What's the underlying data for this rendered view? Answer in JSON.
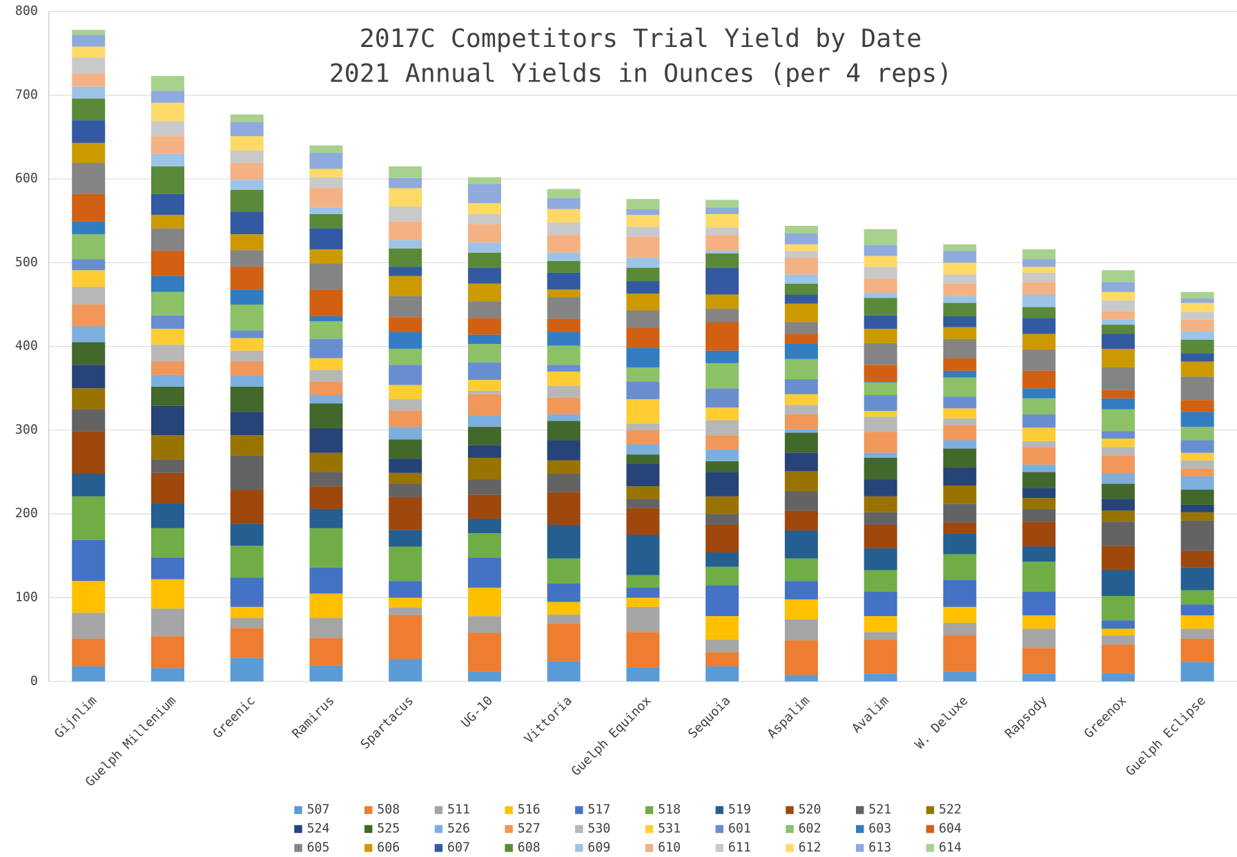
{
  "chart_data": {
    "type": "stacked_bar",
    "title": [
      "2017C Competitors Trial Yield by Date",
      "2021  Annual Yields in Ounces (per 4 reps)"
    ],
    "categories": [
      "Gijnlim",
      "Guelph Millenium",
      "Greenic",
      "Ramirus",
      "Spartacus",
      "UG-10",
      "Vittoria",
      "Guelph Equinox",
      "Sequoia",
      "Aspalim",
      "Avalim",
      "W. Deluxe",
      "Rapsody",
      "Greenox",
      "Guelph Eclipse"
    ],
    "ylim": [
      0,
      800
    ],
    "yticks": [
      0,
      100,
      200,
      300,
      400,
      500,
      600,
      700,
      800
    ],
    "grid": true,
    "legend": "bottom",
    "series": [
      {
        "name": "507",
        "color": "#5b9bd5",
        "values": [
          18,
          16,
          28,
          19,
          27,
          12,
          24,
          17,
          18,
          8,
          9,
          12,
          9,
          10,
          23
        ]
      },
      {
        "name": "508",
        "color": "#ed7d31",
        "values": [
          33,
          38,
          36,
          33,
          52,
          46,
          45,
          42,
          17,
          41,
          41,
          43,
          31,
          34,
          28
        ]
      },
      {
        "name": "511",
        "color": "#a5a5a5",
        "values": [
          31,
          33,
          12,
          24,
          9,
          20,
          11,
          30,
          15,
          25,
          9,
          15,
          23,
          11,
          12
        ]
      },
      {
        "name": "516",
        "color": "#ffc000",
        "values": [
          38,
          35,
          13,
          29,
          12,
          34,
          15,
          11,
          28,
          24,
          19,
          19,
          16,
          8,
          16
        ]
      },
      {
        "name": "517",
        "color": "#4472c4",
        "values": [
          49,
          26,
          35,
          31,
          20,
          36,
          22,
          12,
          37,
          22,
          29,
          32,
          28,
          10,
          13
        ]
      },
      {
        "name": "518",
        "color": "#70ad47",
        "values": [
          52,
          35,
          38,
          47,
          41,
          29,
          30,
          15,
          22,
          27,
          26,
          31,
          36,
          29,
          17
        ]
      },
      {
        "name": "519",
        "color": "#255e91",
        "values": [
          27,
          30,
          26,
          23,
          20,
          17,
          40,
          48,
          17,
          33,
          26,
          25,
          18,
          31,
          27
        ]
      },
      {
        "name": "520",
        "color": "#9e480e",
        "values": [
          51,
          36,
          41,
          27,
          39,
          29,
          39,
          32,
          33,
          24,
          28,
          13,
          30,
          29,
          20
        ]
      },
      {
        "name": "521",
        "color": "#636363",
        "values": [
          26,
          16,
          41,
          17,
          16,
          18,
          22,
          11,
          13,
          23,
          15,
          22,
          15,
          29,
          36
        ]
      },
      {
        "name": "522",
        "color": "#997300",
        "values": [
          25,
          29,
          24,
          23,
          13,
          26,
          16,
          15,
          21,
          24,
          19,
          22,
          13,
          13,
          10
        ]
      },
      {
        "name": "524",
        "color": "#264478",
        "values": [
          28,
          35,
          28,
          29,
          17,
          15,
          24,
          27,
          29,
          22,
          20,
          21,
          12,
          14,
          9
        ]
      },
      {
        "name": "525",
        "color": "#43682b",
        "values": [
          27,
          23,
          30,
          30,
          23,
          22,
          23,
          11,
          13,
          24,
          26,
          23,
          19,
          18,
          18
        ]
      },
      {
        "name": "526",
        "color": "#7cafdd",
        "values": [
          19,
          14,
          13,
          10,
          15,
          14,
          8,
          12,
          14,
          4,
          6,
          10,
          9,
          12,
          16
        ]
      },
      {
        "name": "527",
        "color": "#f1975a",
        "values": [
          26,
          16,
          17,
          16,
          19,
          25,
          20,
          17,
          17,
          18,
          25,
          18,
          21,
          22,
          9
        ]
      },
      {
        "name": "530",
        "color": "#b7b7b7",
        "values": [
          21,
          20,
          13,
          14,
          14,
          4,
          14,
          8,
          18,
          11,
          18,
          8,
          7,
          10,
          10
        ]
      },
      {
        "name": "531",
        "color": "#ffcd33",
        "values": [
          20,
          19,
          15,
          14,
          17,
          13,
          17,
          29,
          15,
          13,
          7,
          12,
          16,
          10,
          9
        ]
      },
      {
        "name": "601",
        "color": "#698ed0",
        "values": [
          13,
          16,
          9,
          23,
          24,
          21,
          8,
          21,
          23,
          18,
          19,
          14,
          16,
          9,
          15
        ]
      },
      {
        "name": "602",
        "color": "#8cc168",
        "values": [
          30,
          28,
          31,
          21,
          19,
          22,
          23,
          17,
          30,
          24,
          15,
          23,
          19,
          26,
          16
        ]
      },
      {
        "name": "603",
        "color": "#327dc2",
        "values": [
          15,
          19,
          18,
          6,
          20,
          11,
          16,
          23,
          15,
          18,
          1,
          8,
          12,
          13,
          18
        ]
      },
      {
        "name": "604",
        "color": "#d26012",
        "values": [
          33,
          30,
          27,
          32,
          18,
          20,
          16,
          24,
          34,
          12,
          20,
          15,
          21,
          10,
          14
        ]
      },
      {
        "name": "605",
        "color": "#848484",
        "values": [
          37,
          27,
          20,
          31,
          25,
          20,
          26,
          21,
          16,
          14,
          26,
          23,
          25,
          27,
          28
        ]
      },
      {
        "name": "606",
        "color": "#cc9a00",
        "values": [
          24,
          16,
          19,
          17,
          24,
          21,
          9,
          20,
          17,
          22,
          17,
          14,
          19,
          22,
          18
        ]
      },
      {
        "name": "607",
        "color": "#335aa1",
        "values": [
          27,
          25,
          27,
          25,
          11,
          19,
          20,
          15,
          32,
          11,
          16,
          13,
          19,
          18,
          10
        ]
      },
      {
        "name": "608",
        "color": "#5a8a39",
        "values": [
          26,
          33,
          26,
          17,
          22,
          18,
          14,
          16,
          17,
          13,
          21,
          16,
          13,
          11,
          16
        ]
      },
      {
        "name": "609",
        "color": "#9dc3e6",
        "values": [
          14,
          15,
          12,
          8,
          10,
          12,
          10,
          12,
          3,
          11,
          6,
          8,
          15,
          6,
          10
        ]
      },
      {
        "name": "610",
        "color": "#f4b183",
        "values": [
          16,
          21,
          20,
          23,
          22,
          22,
          21,
          25,
          19,
          20,
          17,
          15,
          15,
          10,
          14
        ]
      },
      {
        "name": "611",
        "color": "#c9c9c9",
        "values": [
          19,
          18,
          15,
          13,
          18,
          12,
          15,
          12,
          9,
          8,
          14,
          11,
          11,
          13,
          9
        ]
      },
      {
        "name": "612",
        "color": "#ffd966",
        "values": [
          13,
          22,
          17,
          10,
          22,
          13,
          16,
          14,
          16,
          8,
          13,
          14,
          7,
          10,
          11
        ]
      },
      {
        "name": "613",
        "color": "#8faadc",
        "values": [
          14,
          14,
          17,
          19,
          12,
          23,
          13,
          7,
          8,
          13,
          13,
          14,
          9,
          12,
          5
        ]
      },
      {
        "name": "614",
        "color": "#a9d18e",
        "values": [
          6,
          18,
          9,
          9,
          14,
          8,
          11,
          12,
          9,
          9,
          19,
          8,
          12,
          14,
          8
        ]
      }
    ]
  }
}
